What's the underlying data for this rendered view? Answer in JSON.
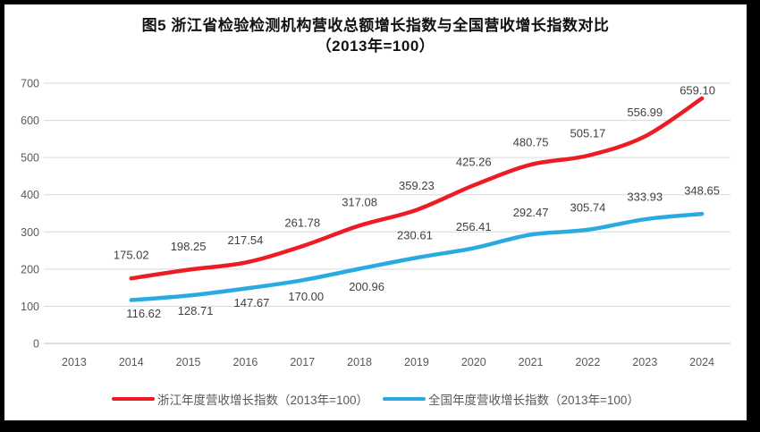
{
  "figure": {
    "title_line1": "图5  浙江省检验检测机构营收总额增长指数与全国营收增长指数对比",
    "title_line2": "（2013年=100）"
  },
  "chart_data": {
    "type": "line",
    "title": "图5 浙江省检验检测机构营收总额增长指数与全国营收增长指数对比（2013年=100）",
    "categories": [
      "2013",
      "2014",
      "2015",
      "2016",
      "2017",
      "2018",
      "2019",
      "2020",
      "2021",
      "2022",
      "2023",
      "2024"
    ],
    "series": [
      {
        "name": "浙江年度营收增长指数（2013年=100）",
        "color": "#EC1C24",
        "values": [
          null,
          175.02,
          198.25,
          217.54,
          261.78,
          317.08,
          359.23,
          425.26,
          480.75,
          505.17,
          556.99,
          659.1
        ],
        "label_dx": [
          null,
          0,
          0,
          0,
          0,
          0,
          0,
          0,
          0,
          0,
          0,
          -5
        ],
        "label_dy": [
          null,
          -26,
          -26,
          -25,
          -26,
          -26,
          -27,
          -26,
          -25,
          -25,
          -27,
          -9
        ]
      },
      {
        "name": "全国年度营收增长指数（2013年=100）",
        "color": "#29ABE2",
        "values": [
          null,
          116.62,
          128.71,
          147.67,
          170.0,
          200.96,
          230.61,
          256.41,
          292.47,
          305.74,
          333.93,
          348.65
        ],
        "label_dx": [
          null,
          14,
          8,
          7,
          4,
          8,
          -2,
          0,
          0,
          0,
          0,
          0
        ],
        "label_dy": [
          null,
          15,
          17,
          16,
          18,
          20,
          -25,
          -24,
          -25,
          -25,
          -25,
          -26
        ]
      }
    ],
    "xlabel": "",
    "ylabel": "",
    "ylim": [
      0,
      700
    ],
    "y_ticks": [
      0,
      100,
      200,
      300,
      400,
      500,
      600,
      700
    ],
    "grid": true,
    "legend_position": "bottom",
    "axis_label_color": "#595959",
    "data_label_color": "#404040",
    "gridline_color": "#D9D9D9",
    "axis_line_color": "#BFBFBF"
  }
}
